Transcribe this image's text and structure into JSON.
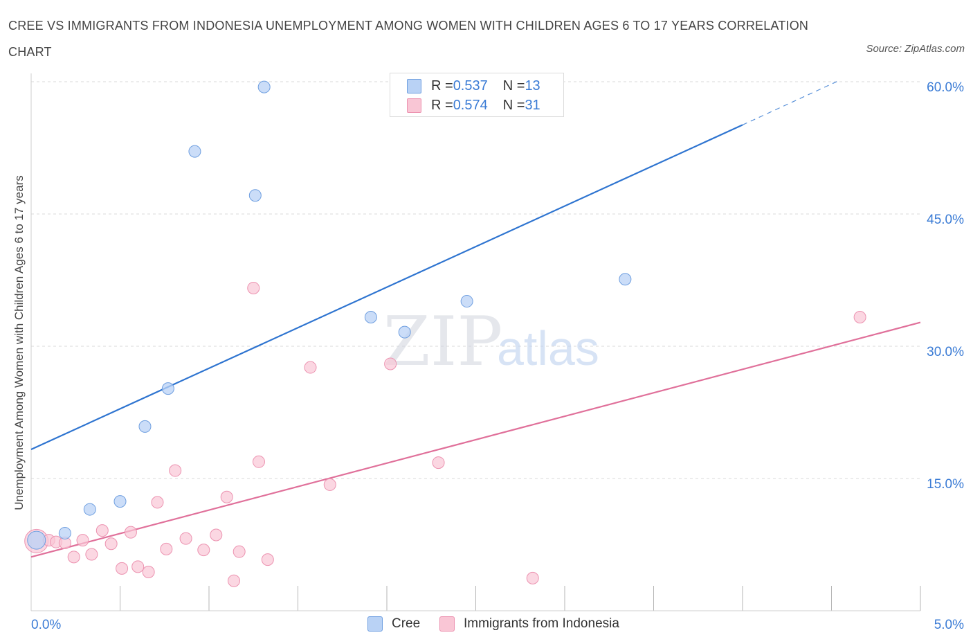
{
  "title": "CREE VS IMMIGRANTS FROM INDONESIA UNEMPLOYMENT AMONG WOMEN WITH CHILDREN AGES 6 TO 17 YEARS CORRELATION CHART",
  "source": "Source: ZipAtlas.com",
  "watermark": {
    "zip": "ZIP",
    "atlas": "atlas"
  },
  "legend": {
    "r_label": "R = ",
    "n_label": "N = ",
    "series": [
      {
        "name": "Cree",
        "r": "0.537",
        "n": "13"
      },
      {
        "name": "Immigrants from Indonesia",
        "r": "0.574",
        "n": "31"
      }
    ]
  },
  "colors": {
    "cree_fill": "#b9d2f5",
    "cree_stroke": "#6f9fe0",
    "cree_line": "#2e74d0",
    "indo_fill": "#f9c6d5",
    "indo_stroke": "#ec92b0",
    "indo_line": "#e0709a",
    "axis_label": "#3a7bd5",
    "grid": "#d9d9d9"
  },
  "chart_data": {
    "type": "scatter",
    "title": "CREE VS IMMIGRANTS FROM INDONESIA UNEMPLOYMENT AMONG WOMEN WITH CHILDREN AGES 6 TO 17 YEARS CORRELATION CHART",
    "xlabel": "",
    "ylabel": "Unemployment Among Women with Children Ages 6 to 17 years",
    "xlim": [
      0,
      5
    ],
    "ylim": [
      0,
      60
    ],
    "x_tick_labels": [
      "0.0%",
      "5.0%"
    ],
    "y_tick_labels": [
      "15.0%",
      "30.0%",
      "45.0%",
      "60.0%"
    ],
    "y_ticks": [
      15,
      30,
      45,
      60
    ],
    "series": [
      {
        "name": "Cree",
        "points": [
          {
            "x": 0.03,
            "y": 8.0
          },
          {
            "x": 0.19,
            "y": 8.8
          },
          {
            "x": 0.33,
            "y": 11.5
          },
          {
            "x": 0.5,
            "y": 12.4
          },
          {
            "x": 0.64,
            "y": 20.9
          },
          {
            "x": 0.77,
            "y": 25.2
          },
          {
            "x": 0.92,
            "y": 52.1
          },
          {
            "x": 1.26,
            "y": 47.1
          },
          {
            "x": 1.31,
            "y": 59.4
          },
          {
            "x": 1.91,
            "y": 33.3
          },
          {
            "x": 2.1,
            "y": 31.6
          },
          {
            "x": 2.45,
            "y": 35.1
          },
          {
            "x": 3.34,
            "y": 37.6
          }
        ],
        "trend": {
          "x0": 0,
          "y0": 18.3,
          "x1": 4.0,
          "y1": 55.1,
          "dash_to_x": 4.55,
          "dash_to_y": 60.2
        }
      },
      {
        "name": "Immigrants from Indonesia",
        "points": [
          {
            "x": 0.03,
            "y": 7.9
          },
          {
            "x": 0.1,
            "y": 8.0
          },
          {
            "x": 0.14,
            "y": 7.8
          },
          {
            "x": 0.19,
            "y": 7.7
          },
          {
            "x": 0.24,
            "y": 6.1
          },
          {
            "x": 0.29,
            "y": 8.0
          },
          {
            "x": 0.34,
            "y": 6.4
          },
          {
            "x": 0.4,
            "y": 9.1
          },
          {
            "x": 0.45,
            "y": 7.6
          },
          {
            "x": 0.51,
            "y": 4.8
          },
          {
            "x": 0.56,
            "y": 8.9
          },
          {
            "x": 0.6,
            "y": 5.0
          },
          {
            "x": 0.66,
            "y": 4.4
          },
          {
            "x": 0.71,
            "y": 12.3
          },
          {
            "x": 0.76,
            "y": 7.0
          },
          {
            "x": 0.81,
            "y": 15.9
          },
          {
            "x": 0.87,
            "y": 8.2
          },
          {
            "x": 0.97,
            "y": 6.9
          },
          {
            "x": 1.04,
            "y": 8.6
          },
          {
            "x": 1.1,
            "y": 12.9
          },
          {
            "x": 1.14,
            "y": 3.4
          },
          {
            "x": 1.17,
            "y": 6.7
          },
          {
            "x": 1.25,
            "y": 36.6
          },
          {
            "x": 1.28,
            "y": 16.9
          },
          {
            "x": 1.33,
            "y": 5.8
          },
          {
            "x": 1.57,
            "y": 27.6
          },
          {
            "x": 1.68,
            "y": 14.3
          },
          {
            "x": 2.02,
            "y": 28.0
          },
          {
            "x": 2.29,
            "y": 16.8
          },
          {
            "x": 2.82,
            "y": 3.7
          },
          {
            "x": 4.66,
            "y": 33.3
          }
        ],
        "trend": {
          "x0": 0,
          "y0": 6.1,
          "x1": 5.0,
          "y1": 32.7
        }
      }
    ]
  }
}
